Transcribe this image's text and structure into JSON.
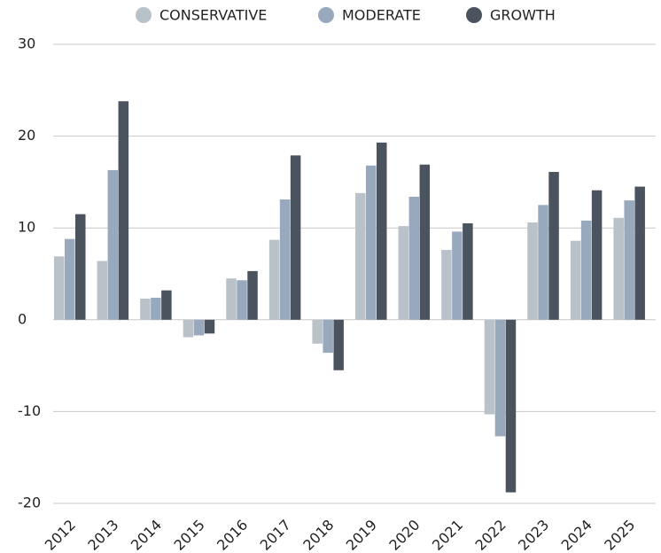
{
  "chart_data": {
    "type": "bar",
    "categories": [
      "2012",
      "2013",
      "2014",
      "2015",
      "2016",
      "2017",
      "2018",
      "2019",
      "2020",
      "2021",
      "2022",
      "2023",
      "2024",
      "2025"
    ],
    "series": [
      {
        "name": "CONSERVATIVE",
        "color": "#b9c1c9",
        "values": [
          6.9,
          6.4,
          2.3,
          -1.9,
          4.5,
          8.7,
          -2.6,
          13.8,
          10.2,
          7.6,
          -10.3,
          10.6,
          8.6,
          11.1
        ]
      },
      {
        "name": "MODERATE",
        "color": "#98a9be",
        "values": [
          8.8,
          16.3,
          2.4,
          -1.7,
          4.3,
          13.1,
          -3.6,
          16.8,
          13.4,
          9.6,
          -12.7,
          12.5,
          10.8,
          13.0
        ]
      },
      {
        "name": "GROWTH",
        "color": "#4b535f",
        "values": [
          11.5,
          23.8,
          3.2,
          -1.5,
          5.3,
          17.9,
          -5.5,
          19.3,
          16.9,
          10.5,
          -18.8,
          16.1,
          14.1,
          14.5
        ]
      }
    ],
    "ylim": [
      -20,
      30
    ],
    "yticks": [
      -20,
      -10,
      0,
      10,
      20,
      30
    ],
    "grid": true,
    "legend": "top"
  }
}
